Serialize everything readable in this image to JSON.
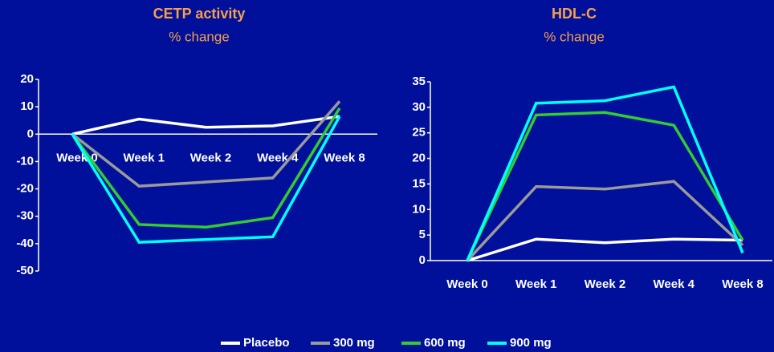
{
  "chart_data": [
    {
      "type": "line",
      "title": "CETP activity",
      "subtitle": "% change",
      "categories": [
        "Week 0",
        "Week 1",
        "Week 2",
        "Week 4",
        "Week 8"
      ],
      "ylim": [
        -50,
        20
      ],
      "yticks": [
        20,
        10,
        0,
        -10,
        -20,
        -30,
        -40,
        -50
      ],
      "series": [
        {
          "name": "Placebo",
          "color": "#ffffff",
          "values": [
            0,
            5.5,
            2.5,
            3,
            6.5
          ]
        },
        {
          "name": "300 mg",
          "color": "#9a9a9a",
          "values": [
            0,
            -19,
            -17.5,
            -16,
            12
          ]
        },
        {
          "name": "600 mg",
          "color": "#33cc33",
          "values": [
            0,
            -33,
            -34,
            -30.5,
            9.5
          ]
        },
        {
          "name": "900 mg",
          "color": "#00ffff",
          "values": [
            0,
            -39.5,
            -38.5,
            -37.5,
            6.5
          ]
        }
      ]
    },
    {
      "type": "line",
      "title": "HDL-C",
      "subtitle": "% change",
      "categories": [
        "Week 0",
        "Week 1",
        "Week 2",
        "Week 4",
        "Week 8"
      ],
      "ylim": [
        0,
        35
      ],
      "yticks": [
        35,
        30,
        25,
        20,
        15,
        10,
        5,
        0
      ],
      "series": [
        {
          "name": "Placebo",
          "color": "#ffffff",
          "values": [
            0,
            4.2,
            3.5,
            4.2,
            4
          ]
        },
        {
          "name": "300 mg",
          "color": "#9a9a9a",
          "values": [
            0,
            14.5,
            14,
            15.5,
            3
          ]
        },
        {
          "name": "600 mg",
          "color": "#33cc33",
          "values": [
            0,
            28.5,
            29,
            26.5,
            4
          ]
        },
        {
          "name": "900 mg",
          "color": "#00ffff",
          "values": [
            0,
            30.8,
            31.3,
            34,
            1.5
          ]
        }
      ]
    }
  ]
}
